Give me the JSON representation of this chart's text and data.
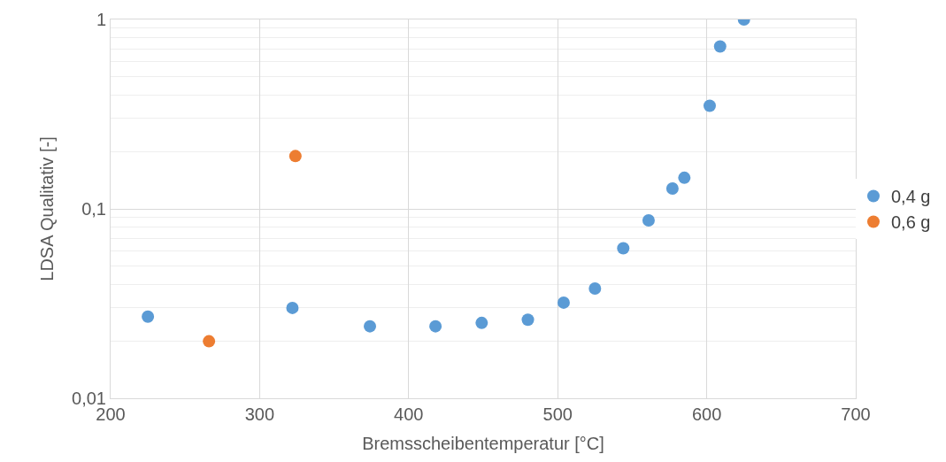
{
  "chart_data": {
    "type": "scatter",
    "xlabel": "Bremsscheibentemperatur [°C]",
    "ylabel": "LDSA Qualitativ [-]",
    "series": [
      {
        "name": "0,4 g",
        "color": "#5b9bd5",
        "x": [
          225,
          322,
          374,
          418,
          449,
          480,
          504,
          525,
          544,
          561,
          577,
          585,
          602,
          609,
          625
        ],
        "values": [
          0.027,
          0.03,
          0.024,
          0.024,
          0.025,
          0.026,
          0.032,
          0.038,
          0.062,
          0.087,
          0.128,
          0.146,
          0.35,
          0.72,
          1.0
        ]
      },
      {
        "name": "0,6 g",
        "color": "#ed7d31",
        "x": [
          266,
          324
        ],
        "values": [
          0.02,
          0.19
        ]
      }
    ],
    "xlim": [
      200,
      700
    ],
    "xticks": [
      200,
      300,
      400,
      500,
      600,
      700
    ],
    "ylim": [
      0.01,
      1
    ],
    "yticks": [
      {
        "value": 0.01,
        "label": "0,01"
      },
      {
        "value": 0.1,
        "label": "0,1"
      },
      1
    ],
    "log": "y",
    "grid": true,
    "legend": "right",
    "marker": "circle"
  }
}
